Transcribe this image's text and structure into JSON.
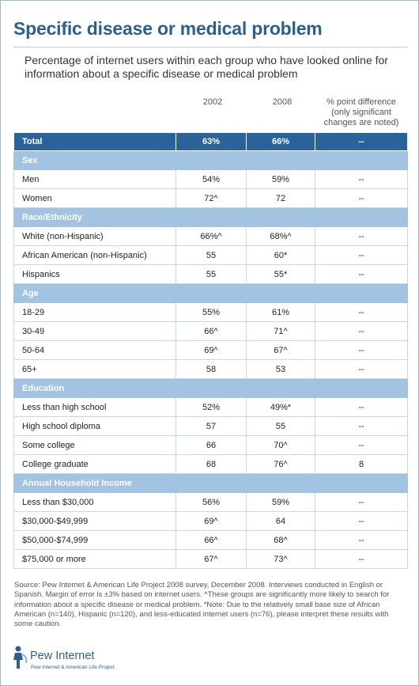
{
  "title": "Specific disease or medical problem",
  "subtitle": "Percentage of internet users within each group who have looked online for information about a specific disease or medical problem",
  "columns": [
    "2002",
    "2008",
    "% point difference (only significant changes are noted)"
  ],
  "total": {
    "label": "Total",
    "v2002": "63%",
    "v2008": "66%",
    "diff": "--"
  },
  "sections": [
    {
      "name": "Sex",
      "rows": [
        {
          "label": "Men",
          "v2002": "54%",
          "v2008": "59%",
          "diff": "--"
        },
        {
          "label": "Women",
          "v2002": "72^",
          "v2008": "72",
          "diff": "--"
        }
      ]
    },
    {
      "name": "Race/Ethnicity",
      "rows": [
        {
          "label": "White (non-Hispanic)",
          "v2002": "66%^",
          "v2008": "68%^",
          "diff": "--"
        },
        {
          "label": "African American (non-Hispanic)",
          "v2002": "55",
          "v2008": "60*",
          "diff": "--"
        },
        {
          "label": "Hispanics",
          "v2002": "55",
          "v2008": "55*",
          "diff": "--"
        }
      ]
    },
    {
      "name": "Age",
      "rows": [
        {
          "label": "18-29",
          "v2002": "55%",
          "v2008": "61%",
          "diff": "--"
        },
        {
          "label": "30-49",
          "v2002": "66^",
          "v2008": "71^",
          "diff": "--"
        },
        {
          "label": "50-64",
          "v2002": "69^",
          "v2008": "67^",
          "diff": "--"
        },
        {
          "label": "65+",
          "v2002": "58",
          "v2008": "53",
          "diff": "--"
        }
      ]
    },
    {
      "name": "Education",
      "rows": [
        {
          "label": "Less than high school",
          "v2002": "52%",
          "v2008": "49%*",
          "diff": "--"
        },
        {
          "label": "High school diploma",
          "v2002": "57",
          "v2008": "55",
          "diff": "--"
        },
        {
          "label": "Some college",
          "v2002": "66",
          "v2008": "70^",
          "diff": "--"
        },
        {
          "label": "College graduate",
          "v2002": "68",
          "v2008": "76^",
          "diff": "8"
        }
      ]
    },
    {
      "name": "Annual Household Income",
      "rows": [
        {
          "label": "Less than $30,000",
          "v2002": "56%",
          "v2008": "59%",
          "diff": "--"
        },
        {
          "label": "$30,000-$49,999",
          "v2002": "69^",
          "v2008": "64",
          "diff": "--"
        },
        {
          "label": "$50,000-$74,999",
          "v2002": "66^",
          "v2008": "68^",
          "diff": "--"
        },
        {
          "label": "$75,000 or more",
          "v2002": "67^",
          "v2008": "73^",
          "diff": "--"
        }
      ]
    }
  ],
  "source": "Source:  Pew Internet & American Life Project 2008 survey, December 2008.  Interviews conducted in English or Spanish.  Margin of error is ±3% based on internet users.  ^These groups are significantly more likely to search for information about a specific disease or medical problem.  *Note: Due to the relatively small base size of African American (n=140), Hispanic (n=120), and less-educated internet users (n=76), please interpret these results with some caution.",
  "logo": {
    "name": "Pew Internet",
    "tagline": "Pew Internet & American Life Project"
  },
  "colors": {
    "title": "#2c5f8f",
    "total_row": "#29639a",
    "section_row": "#a2c3e2"
  },
  "chart_data": {
    "type": "table",
    "title": "Specific disease or medical problem",
    "columns": [
      "2002",
      "2008",
      "% point difference (only significant changes are noted)"
    ],
    "rows": [
      {
        "group": "Total",
        "label": "Total",
        "values": [
          "63%",
          "66%",
          "--"
        ]
      },
      {
        "group": "Sex",
        "label": "Men",
        "values": [
          "54%",
          "59%",
          "--"
        ]
      },
      {
        "group": "Sex",
        "label": "Women",
        "values": [
          "72^",
          "72",
          "--"
        ]
      },
      {
        "group": "Race/Ethnicity",
        "label": "White (non-Hispanic)",
        "values": [
          "66%^",
          "68%^",
          "--"
        ]
      },
      {
        "group": "Race/Ethnicity",
        "label": "African American (non-Hispanic)",
        "values": [
          "55",
          "60*",
          "--"
        ]
      },
      {
        "group": "Race/Ethnicity",
        "label": "Hispanics",
        "values": [
          "55",
          "55*",
          "--"
        ]
      },
      {
        "group": "Age",
        "label": "18-29",
        "values": [
          "55%",
          "61%",
          "--"
        ]
      },
      {
        "group": "Age",
        "label": "30-49",
        "values": [
          "66^",
          "71^",
          "--"
        ]
      },
      {
        "group": "Age",
        "label": "50-64",
        "values": [
          "69^",
          "67^",
          "--"
        ]
      },
      {
        "group": "Age",
        "label": "65+",
        "values": [
          "58",
          "53",
          "--"
        ]
      },
      {
        "group": "Education",
        "label": "Less than high school",
        "values": [
          "52%",
          "49%*",
          "--"
        ]
      },
      {
        "group": "Education",
        "label": "High school diploma",
        "values": [
          "57",
          "55",
          "--"
        ]
      },
      {
        "group": "Education",
        "label": "Some college",
        "values": [
          "66",
          "70^",
          "--"
        ]
      },
      {
        "group": "Education",
        "label": "College graduate",
        "values": [
          "68",
          "76^",
          "8"
        ]
      },
      {
        "group": "Annual Household Income",
        "label": "Less than $30,000",
        "values": [
          "56%",
          "59%",
          "--"
        ]
      },
      {
        "group": "Annual Household Income",
        "label": "$30,000-$49,999",
        "values": [
          "69^",
          "64",
          "--"
        ]
      },
      {
        "group": "Annual Household Income",
        "label": "$50,000-$74,999",
        "values": [
          "66^",
          "68^",
          "--"
        ]
      },
      {
        "group": "Annual Household Income",
        "label": "$75,000 or more",
        "values": [
          "67^",
          "73^",
          "--"
        ]
      }
    ]
  }
}
